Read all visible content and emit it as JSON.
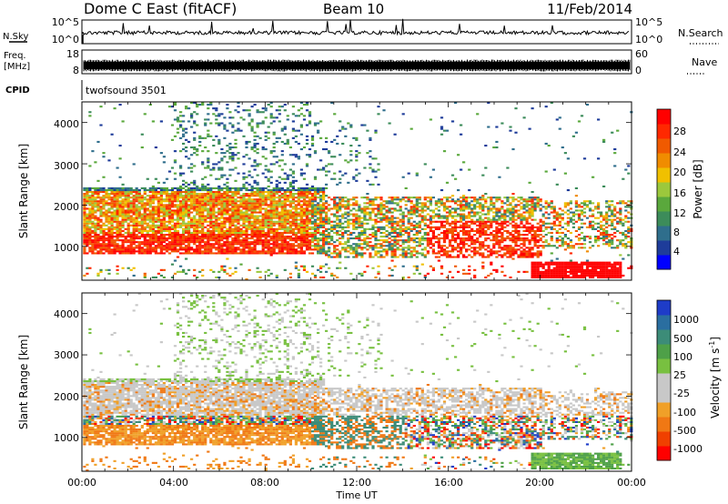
{
  "header": {
    "radar": "Dome C East (fitACF)",
    "beam": "Beam 10",
    "date": "11/Feb/2014"
  },
  "top_panel": {
    "left_label": "N.Sky",
    "left_ticks": [
      "10^5",
      "10^0"
    ],
    "right_ticks": [
      "10^5",
      "10^0"
    ],
    "right_label": "N.Search"
  },
  "freq_panel": {
    "left_label_top": "Freq.",
    "left_label_unit": "[MHz]",
    "left_ticks": [
      "18",
      "8"
    ],
    "right_ticks": [
      "60",
      "0"
    ],
    "right_label": "Nave"
  },
  "cpid": {
    "label": "CPID",
    "value": "twofsound 3501"
  },
  "x_axis": {
    "ticks": [
      "00:00",
      "04:00",
      "08:00",
      "12:00",
      "16:00",
      "20:00",
      "00:00"
    ],
    "label": "Time UT"
  },
  "power_panel": {
    "ylabel": "Slant Range [km]",
    "yticks": [
      "4000",
      "3000",
      "2000",
      "1000"
    ],
    "colorbar_label": "Power [dB]",
    "colorbar_ticks": [
      "28",
      "24",
      "20",
      "16",
      "12",
      "8",
      "4"
    ],
    "colors": [
      "#0000ff",
      "#1e3c9a",
      "#2f6e8c",
      "#3c8c5a",
      "#5aa83c",
      "#9cc83c",
      "#f0c000",
      "#f08c00",
      "#f05a00",
      "#ff2800",
      "#ff0000"
    ]
  },
  "velocity_panel": {
    "ylabel": "Slant Range [km]",
    "yticks": [
      "4000",
      "3000",
      "2000",
      "1000"
    ],
    "colorbar_label": "Velocity [m s",
    "colorbar_sup": "-1",
    "colorbar_close": "]",
    "colorbar_ticks": [
      "1000",
      "500",
      "100",
      "25",
      "-25",
      "-100",
      "-500",
      "-1000"
    ],
    "colors": [
      "#1e3cc8",
      "#2a6ea0",
      "#3c8c78",
      "#4ea048",
      "#78c040",
      "#c8c8c8",
      "#c8c8c8",
      "#f0a028",
      "#f07814",
      "#f04000",
      "#ff0000"
    ]
  },
  "chart_data": [
    {
      "type": "heatmap",
      "quantity": "Power",
      "xlabel": "Time UT",
      "ylabel": "Slant Range [km]",
      "x_range": [
        "00:00",
        "24:00"
      ],
      "ylim": [
        180,
        4500
      ],
      "colorbar_label": "Power [dB]",
      "colorbar_range": [
        0,
        32
      ],
      "colorbar_ticks": [
        4,
        8,
        12,
        16,
        20,
        24,
        28
      ]
    },
    {
      "type": "heatmap",
      "quantity": "Velocity",
      "xlabel": "Time UT",
      "ylabel": "Slant Range [km]",
      "x_range": [
        "00:00",
        "24:00"
      ],
      "ylim": [
        180,
        4500
      ],
      "colorbar_label": "Velocity [m s-1]",
      "colorbar_ticks": [
        1000,
        500,
        100,
        25,
        -25,
        -100,
        -500,
        -1000
      ]
    }
  ]
}
